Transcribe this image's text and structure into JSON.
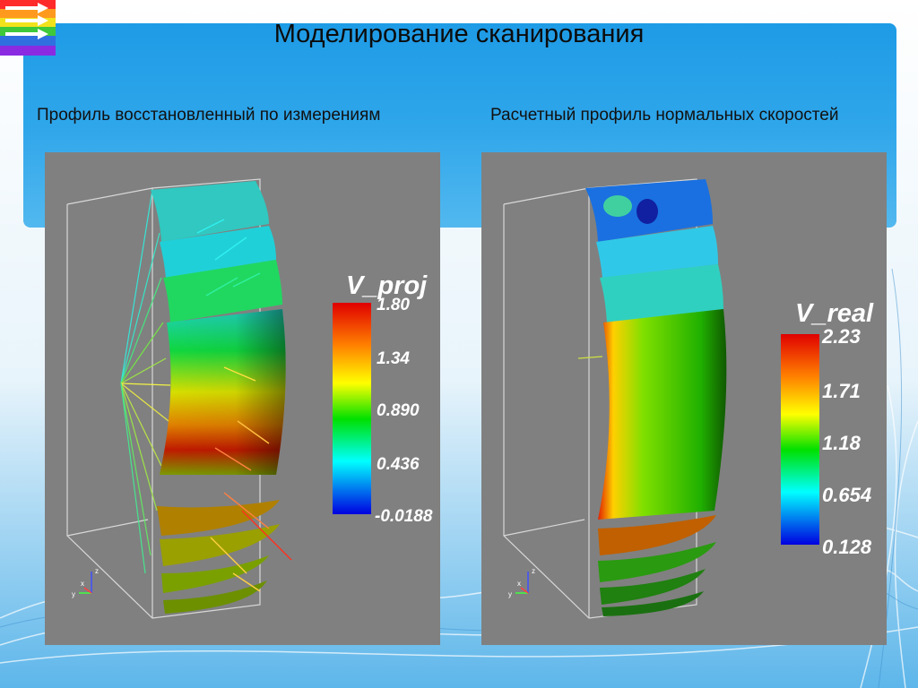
{
  "slide": {
    "title": "Моделирование сканирования",
    "left_caption": "Профиль восстановленный по измерениям",
    "right_caption": "Расчетный профиль нормальных скоростей"
  },
  "left_panel": {
    "colorbar": {
      "title": "V_proj",
      "ticks": [
        "1.80",
        "1.34",
        "0.890",
        "0.436",
        "-0.0188"
      ]
    },
    "axes": {
      "x": "x",
      "y": "y",
      "z": "z"
    }
  },
  "right_panel": {
    "colorbar": {
      "title": "V_real",
      "ticks": [
        "2.23",
        "1.71",
        "1.18",
        "0.654",
        "0.128"
      ]
    },
    "axes": {
      "x": "x",
      "y": "y",
      "z": "z"
    }
  },
  "colors": {
    "header_blue": "#1e9be6",
    "panel_gray": "#808080",
    "colormap": [
      "#ff0000",
      "#ffa500",
      "#ffff00",
      "#00ff00",
      "#00ffff",
      "#0000ff"
    ]
  }
}
